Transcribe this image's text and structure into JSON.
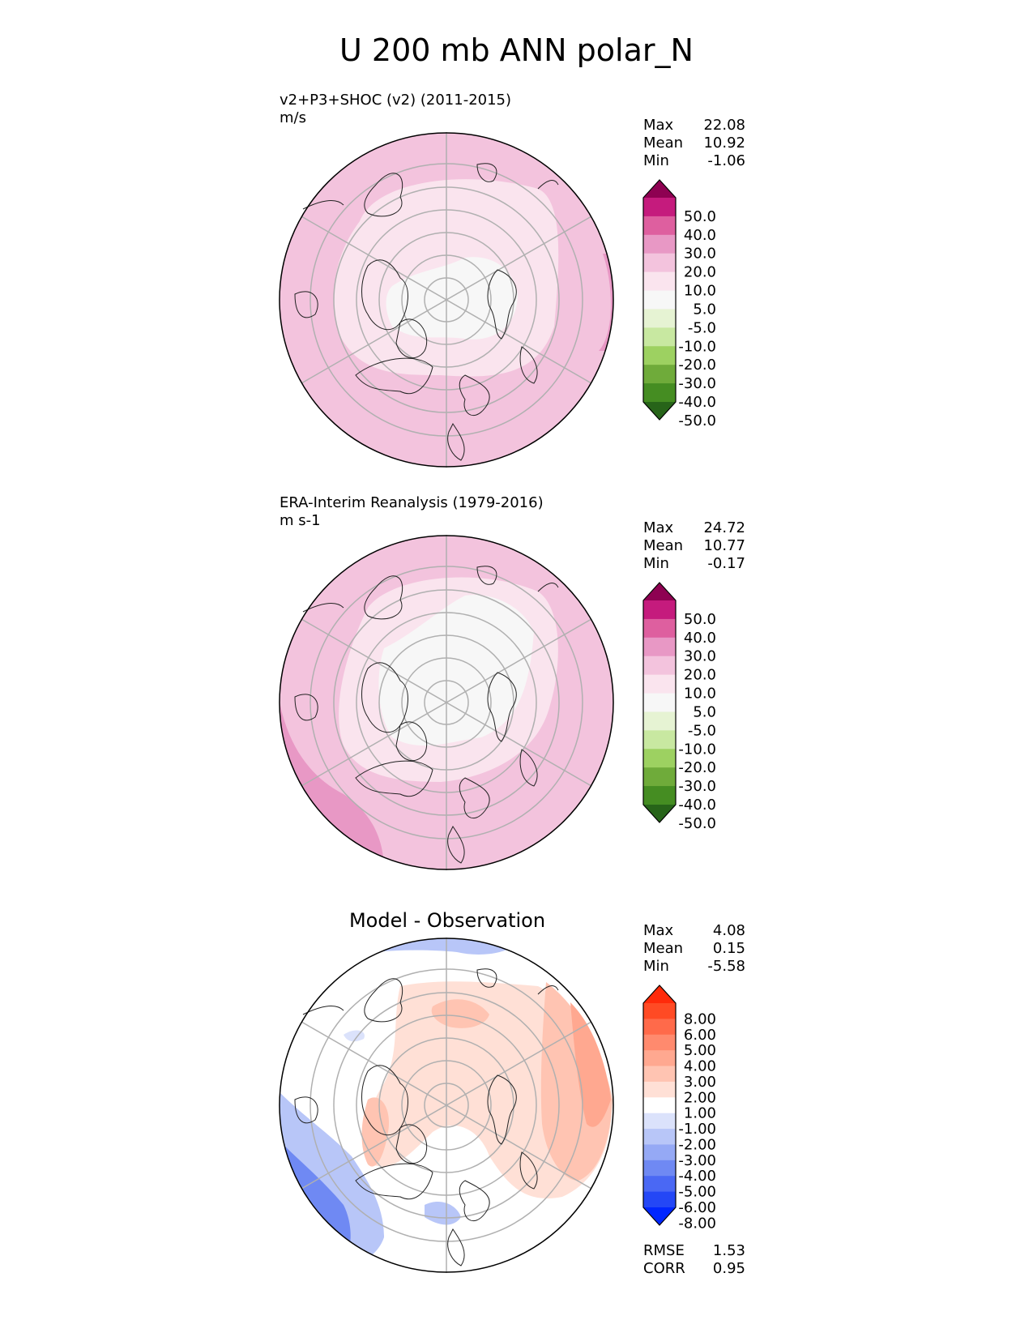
{
  "figure": {
    "title": "U 200 mb ANN polar_N"
  },
  "panels": [
    {
      "id": "test",
      "subtitle_line1": "v2+P3+SHOC (v2) (2011-2015)",
      "subtitle_line2": "m/s",
      "stats": {
        "max_label": "Max",
        "max": "22.08",
        "mean_label": "Mean",
        "mean": "10.92",
        "min_label": "Min",
        "min": "-1.06"
      },
      "colorbar": {
        "ticks": [
          "50.0",
          "40.0",
          "30.0",
          "20.0",
          "10.0",
          "5.0",
          "-5.0",
          "-10.0",
          "-20.0",
          "-30.0",
          "-40.0",
          "-50.0"
        ],
        "colors": [
          "#8e0152",
          "#c51b7d",
          "#de5f9f",
          "#e898c5",
          "#f3c3dd",
          "#fae4ee",
          "#f7f7f7",
          "#e6f3d3",
          "#c8e8a1",
          "#9dd161",
          "#6fab3a",
          "#458d22",
          "#276419"
        ]
      }
    },
    {
      "id": "reference",
      "subtitle_line1": "ERA-Interim Reanalysis (1979-2016)",
      "subtitle_line2": "m s-1",
      "stats": {
        "max_label": "Max",
        "max": "24.72",
        "mean_label": "Mean",
        "mean": "10.77",
        "min_label": "Min",
        "min": "-0.17"
      },
      "colorbar": {
        "ticks": [
          "50.0",
          "40.0",
          "30.0",
          "20.0",
          "10.0",
          "5.0",
          "-5.0",
          "-10.0",
          "-20.0",
          "-30.0",
          "-40.0",
          "-50.0"
        ],
        "colors": [
          "#8e0152",
          "#c51b7d",
          "#de5f9f",
          "#e898c5",
          "#f3c3dd",
          "#fae4ee",
          "#f7f7f7",
          "#e6f3d3",
          "#c8e8a1",
          "#9dd161",
          "#6fab3a",
          "#458d22",
          "#276419"
        ]
      }
    },
    {
      "id": "difference",
      "title": "Model - Observation",
      "stats": {
        "max_label": "Max",
        "max": "4.08",
        "mean_label": "Mean",
        "mean": "0.15",
        "min_label": "Min",
        "min": "-5.58"
      },
      "rmse_label": "RMSE",
      "rmse": "1.53",
      "corr_label": "CORR",
      "corr": "0.95",
      "colorbar": {
        "ticks": [
          "8.00",
          "6.00",
          "5.00",
          "4.00",
          "3.00",
          "2.00",
          "1.00",
          "-1.00",
          "-2.00",
          "-3.00",
          "-4.00",
          "-5.00",
          "-6.00",
          "-8.00"
        ],
        "colors": [
          "#ff2a0a",
          "#ff4a24",
          "#ff6a4a",
          "#ff8a6e",
          "#ffa890",
          "#ffc4b2",
          "#ffe0d6",
          "#ffffff",
          "#dbe2fb",
          "#b8c6f8",
          "#95a9f5",
          "#6f89f3",
          "#4a68f4",
          "#2447f6",
          "#0026ff"
        ]
      }
    }
  ]
}
